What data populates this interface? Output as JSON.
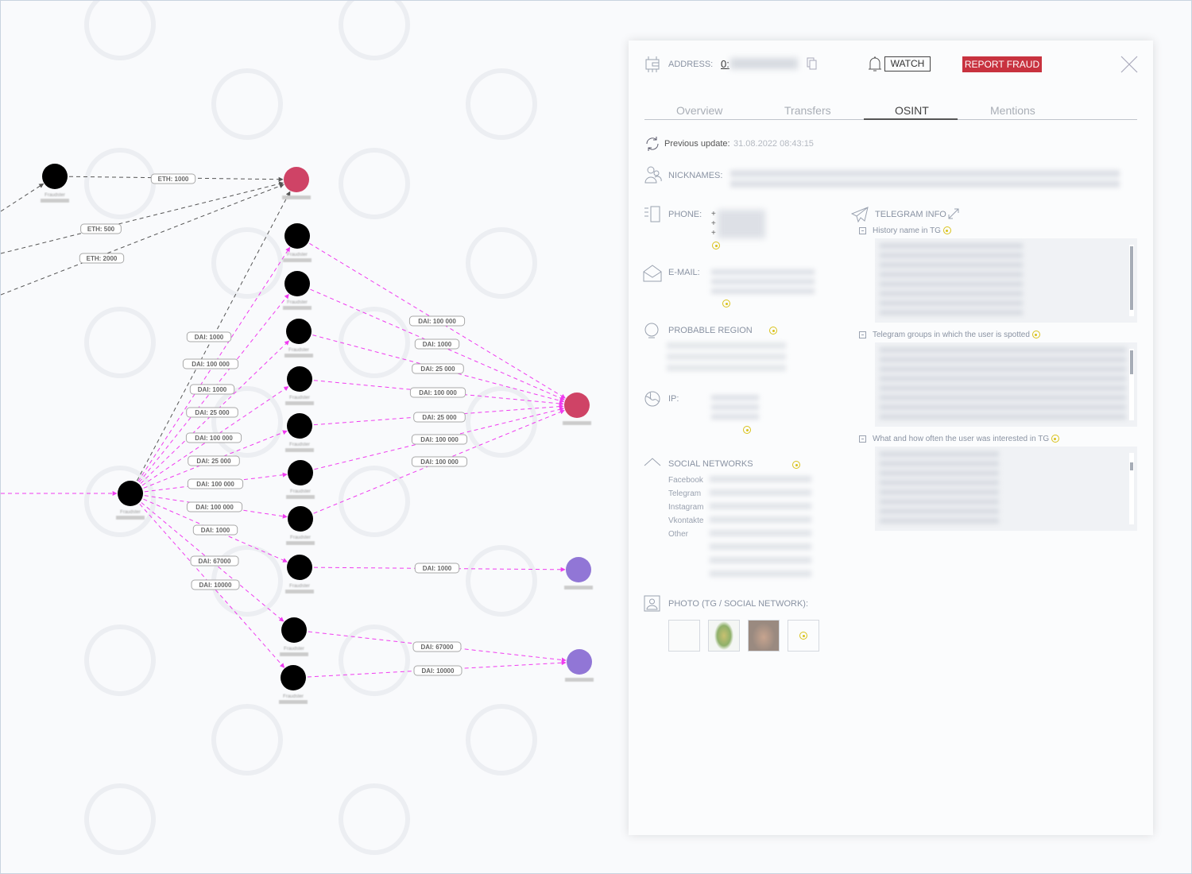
{
  "graph": {
    "node_label": "Fraudster",
    "nodes": [
      {
        "id": "A",
        "color": "#000000",
        "label": "Fraudster"
      },
      {
        "id": "TC",
        "color": "#cf4366",
        "label": ""
      },
      {
        "id": "H",
        "color": "#000000",
        "label": "Fraudster"
      },
      {
        "id": "F1",
        "color": "#000000",
        "label": "Fraudster"
      },
      {
        "id": "F2",
        "color": "#000000",
        "label": "Fraudster"
      },
      {
        "id": "F3",
        "color": "#000000",
        "label": "Fraudster"
      },
      {
        "id": "F4",
        "color": "#000000",
        "label": "Fraudster"
      },
      {
        "id": "F5",
        "color": "#000000",
        "label": "Fraudster"
      },
      {
        "id": "F6",
        "color": "#000000",
        "label": "Fraudster"
      },
      {
        "id": "F7",
        "color": "#000000",
        "label": "Fraudster"
      },
      {
        "id": "F8",
        "color": "#000000",
        "label": "Fraudster"
      },
      {
        "id": "F9",
        "color": "#000000",
        "label": "Fraudster"
      },
      {
        "id": "F10",
        "color": "#000000",
        "label": "Fraudster"
      },
      {
        "id": "FF",
        "color": "#cf4366",
        "label": ""
      },
      {
        "id": "OKX",
        "color": "#9176d6",
        "label": ""
      },
      {
        "id": "EX",
        "color": "#9176d6",
        "label": ""
      }
    ],
    "edges": [
      {
        "from": "X1",
        "to": "A",
        "label": "",
        "kind": "eth"
      },
      {
        "from": "A",
        "to": "TC",
        "label": "ETH: 1000",
        "kind": "eth"
      },
      {
        "from": "X2",
        "to": "TC",
        "label": "ETH: 500",
        "kind": "eth"
      },
      {
        "from": "X3",
        "to": "TC",
        "label": "ETH: 2000",
        "kind": "eth"
      },
      {
        "from": "X4",
        "to": "H",
        "label": "",
        "kind": "dai"
      },
      {
        "from": "H",
        "to": "TC",
        "label": "DAI: 1000",
        "kind": "eth"
      },
      {
        "from": "H",
        "to": "F1",
        "label": "DAI: 100 000",
        "kind": "dai"
      },
      {
        "from": "H",
        "to": "F2",
        "label": "DAI: 1000",
        "kind": "dai"
      },
      {
        "from": "H",
        "to": "F3",
        "label": "DAI: 25 000",
        "kind": "dai"
      },
      {
        "from": "H",
        "to": "F4",
        "label": "DAI: 100 000",
        "kind": "dai"
      },
      {
        "from": "H",
        "to": "F5",
        "label": "DAI: 25 000",
        "kind": "dai"
      },
      {
        "from": "H",
        "to": "F6",
        "label": "DAI: 100 000",
        "kind": "dai"
      },
      {
        "from": "H",
        "to": "F7",
        "label": "DAI: 100 000",
        "kind": "dai"
      },
      {
        "from": "H",
        "to": "F8",
        "label": "DAI: 1000",
        "kind": "dai"
      },
      {
        "from": "H",
        "to": "F9",
        "label": "DAI: 67000",
        "kind": "dai"
      },
      {
        "from": "H",
        "to": "F10",
        "label": "DAI: 10000",
        "kind": "dai"
      },
      {
        "from": "F1",
        "to": "FF",
        "label": "DAI: 100 000",
        "kind": "dai"
      },
      {
        "from": "F2",
        "to": "FF",
        "label": "DAI: 1000",
        "kind": "dai"
      },
      {
        "from": "F3",
        "to": "FF",
        "label": "DAI: 25 000",
        "kind": "dai"
      },
      {
        "from": "F4",
        "to": "FF",
        "label": "DAI: 100 000",
        "kind": "dai"
      },
      {
        "from": "F5",
        "to": "FF",
        "label": "DAI: 25 000",
        "kind": "dai"
      },
      {
        "from": "F6",
        "to": "FF",
        "label": "DAI: 100 000",
        "kind": "dai"
      },
      {
        "from": "F7",
        "to": "FF",
        "label": "DAI: 100 000",
        "kind": "dai"
      },
      {
        "from": "F8",
        "to": "OKX",
        "label": "DAI: 1000",
        "kind": "dai"
      },
      {
        "from": "F9",
        "to": "EX",
        "label": "DAI: 67000",
        "kind": "dai"
      },
      {
        "from": "F10",
        "to": "EX",
        "label": "DAI: 10000",
        "kind": "dai"
      }
    ],
    "colors": {
      "eth_edge": "#555555",
      "dai_edge": "#f03cf0"
    }
  },
  "panel": {
    "address_label": "ADDRESS:",
    "address_value": "0:",
    "watch_label": "WATCH",
    "report_label": "REPORT FRAUD",
    "report_color": "#c8323f",
    "tabs": [
      {
        "label": "Overview",
        "active": false
      },
      {
        "label": "Transfers",
        "active": false
      },
      {
        "label": "OSINT",
        "active": true
      },
      {
        "label": "Mentions",
        "active": false
      }
    ],
    "previous_update_label": "Previous update:",
    "previous_update_value": "31.08.2022 08:43:15",
    "nicknames_label": "NICKNAMES:",
    "phone_label": "PHONE:",
    "phone_prefixes": [
      "+",
      "+",
      "+"
    ],
    "email_label": "E-MAIL:",
    "region_label": "PROBABLE REGION",
    "ip_label": "IP:",
    "telegram_label": "TELEGRAM INFO",
    "tg_history": "History name in TG",
    "tg_groups": "Telegram groups in which the user is spotted",
    "tg_interest": "What and how often the user was interested in TG",
    "social_label": "SOCIAL NETWORKS",
    "social_items": [
      "Facebook",
      "Telegram",
      "Instagram",
      "Vkontakte",
      "Other"
    ],
    "photo_label": "PHOTO (TG / SOCIAL NETWORK):",
    "accent_color": "#d9c21a"
  }
}
